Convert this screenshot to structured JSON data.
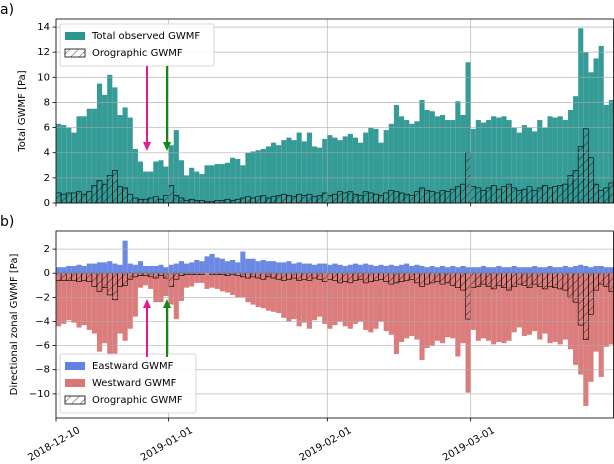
{
  "chart_data": [
    {
      "type": "bar",
      "panel_label": "a)",
      "ylabel": "Total GWMF [Pa]",
      "xlim": [
        "2018-12-10",
        "2019-03-29"
      ],
      "xticks": [
        "2018-12-10",
        "2019-01-01",
        "2019-02-01",
        "2019-03-01"
      ],
      "show_xtick_labels": false,
      "ylim": [
        0,
        14.64
      ],
      "yticks": [
        0,
        2,
        4,
        6,
        8,
        10,
        12,
        14
      ],
      "grid": true,
      "legend": "upper left",
      "x": [
        "2018-12-10",
        "2018-12-11",
        "2018-12-12",
        "2018-12-13",
        "2018-12-14",
        "2018-12-15",
        "2018-12-16",
        "2018-12-17",
        "2018-12-18",
        "2018-12-19",
        "2018-12-20",
        "2018-12-21",
        "2018-12-22",
        "2018-12-23",
        "2018-12-24",
        "2018-12-25",
        "2018-12-26",
        "2018-12-27",
        "2018-12-28",
        "2018-12-29",
        "2018-12-30",
        "2018-12-31",
        "2019-01-01",
        "2019-01-02",
        "2019-01-03",
        "2019-01-04",
        "2019-01-05",
        "2019-01-06",
        "2019-01-07",
        "2019-01-08",
        "2019-01-09",
        "2019-01-10",
        "2019-01-11",
        "2019-01-12",
        "2019-01-13",
        "2019-01-14",
        "2019-01-15",
        "2019-01-16",
        "2019-01-17",
        "2019-01-18",
        "2019-01-19",
        "2019-01-20",
        "2019-01-21",
        "2019-01-22",
        "2019-01-23",
        "2019-01-24",
        "2019-01-25",
        "2019-01-26",
        "2019-01-27",
        "2019-01-28",
        "2019-01-29",
        "2019-01-30",
        "2019-01-31",
        "2019-02-01",
        "2019-02-02",
        "2019-02-03",
        "2019-02-04",
        "2019-02-05",
        "2019-02-06",
        "2019-02-07",
        "2019-02-08",
        "2019-02-09",
        "2019-02-10",
        "2019-02-11",
        "2019-02-12",
        "2019-02-13",
        "2019-02-14",
        "2019-02-15",
        "2019-02-16",
        "2019-02-17",
        "2019-02-18",
        "2019-02-19",
        "2019-02-20",
        "2019-02-21",
        "2019-02-22",
        "2019-02-23",
        "2019-02-24",
        "2019-02-25",
        "2019-02-26",
        "2019-02-27",
        "2019-02-28",
        "2019-03-01",
        "2019-03-02",
        "2019-03-03",
        "2019-03-04",
        "2019-03-05",
        "2019-03-06",
        "2019-03-07",
        "2019-03-08",
        "2019-03-09",
        "2019-03-10",
        "2019-03-11",
        "2019-03-12",
        "2019-03-13",
        "2019-03-14",
        "2019-03-15",
        "2019-03-16",
        "2019-03-17",
        "2019-03-18",
        "2019-03-19",
        "2019-03-20",
        "2019-03-21",
        "2019-03-22",
        "2019-03-23",
        "2019-03-24",
        "2019-03-25",
        "2019-03-26",
        "2019-03-27",
        "2019-03-28"
      ],
      "series": [
        {
          "name": "Total observed GWMF",
          "color": "#2a9690",
          "hatch": false,
          "values": [
            6.3,
            6.2,
            6.0,
            5.6,
            6.9,
            6.9,
            7.5,
            7.5,
            9.5,
            8.6,
            10.2,
            9.2,
            7.0,
            7.6,
            6.8,
            4.3,
            3.3,
            2.5,
            2.5,
            3.3,
            3.4,
            2.9,
            4.6,
            5.8,
            3.4,
            2.2,
            2.8,
            2.5,
            2.3,
            3.0,
            3.0,
            3.1,
            3.1,
            3.2,
            3.6,
            3.5,
            3.0,
            4.0,
            4.1,
            4.2,
            4.3,
            4.5,
            4.8,
            4.6,
            5.0,
            5.2,
            5.0,
            5.6,
            4.9,
            5.6,
            4.5,
            4.4,
            5.1,
            5.4,
            5.2,
            5.0,
            5.3,
            5.5,
            5.2,
            4.8,
            5.6,
            6.0,
            5.9,
            4.8,
            5.8,
            6.3,
            7.8,
            6.9,
            6.6,
            6.3,
            6.5,
            8.2,
            7.4,
            7.3,
            6.9,
            7.0,
            6.6,
            6.6,
            8.1,
            7.0,
            11.2,
            5.9,
            6.6,
            6.4,
            6.6,
            6.9,
            6.8,
            6.9,
            6.6,
            6.0,
            5.6,
            6.2,
            6.0,
            5.7,
            6.6,
            6.0,
            6.9,
            6.8,
            6.9,
            6.6,
            7.4,
            8.5,
            13.9,
            12.0,
            10.4,
            11.5,
            12.5,
            7.8,
            8.2
          ]
        },
        {
          "name": "Orographic GWMF",
          "color": "#2a9690",
          "hatch": true,
          "values": [
            0.8,
            0.7,
            0.8,
            0.8,
            0.9,
            0.7,
            0.9,
            1.4,
            1.8,
            1.5,
            2.2,
            2.6,
            1.3,
            1.2,
            0.7,
            0.4,
            0.3,
            0.3,
            0.4,
            0.5,
            0.3,
            0.6,
            1.4,
            0.6,
            0.4,
            0.2,
            0.3,
            0.2,
            0.2,
            0.1,
            0.1,
            0.2,
            0.2,
            0.3,
            0.2,
            0.3,
            0.4,
            0.5,
            0.4,
            0.5,
            0.6,
            0.4,
            0.5,
            0.6,
            0.7,
            0.6,
            0.5,
            0.7,
            0.6,
            0.7,
            0.5,
            0.6,
            0.8,
            0.6,
            0.7,
            0.9,
            0.8,
            0.9,
            0.7,
            0.6,
            0.9,
            0.8,
            0.7,
            0.6,
            0.8,
            1.0,
            0.9,
            0.8,
            0.7,
            0.6,
            0.9,
            1.2,
            1.0,
            0.9,
            0.8,
            1.0,
            0.9,
            1.1,
            1.3,
            1.5,
            4.0,
            1.3,
            1.2,
            1.0,
            1.2,
            1.4,
            1.1,
            1.3,
            1.5,
            1.2,
            1.0,
            1.1,
            1.3,
            1.0,
            1.2,
            1.4,
            1.2,
            1.3,
            1.4,
            1.5,
            2.2,
            2.6,
            4.5,
            5.9,
            3.6,
            1.5,
            1.0,
            1.2,
            1.6
          ]
        }
      ]
    },
    {
      "type": "bar",
      "panel_label": "b)",
      "ylabel": "Directional zonal GWMF [Pa]",
      "xlim": [
        "2018-12-10",
        "2019-03-29"
      ],
      "xticks": [
        "2018-12-10",
        "2019-01-01",
        "2019-02-01",
        "2019-03-01"
      ],
      "show_xtick_labels": true,
      "ylim": [
        -12,
        3.5
      ],
      "yticks": [
        {
          "value": -10,
          "label": "−10"
        },
        {
          "value": -8,
          "label": "−8"
        },
        {
          "value": -6,
          "label": "−6"
        },
        {
          "value": -4,
          "label": "−4"
        },
        {
          "value": -2,
          "label": "−2"
        },
        0,
        2
      ],
      "grid": true,
      "legend": "lower left",
      "x": [
        "2018-12-10",
        "2018-12-11",
        "2018-12-12",
        "2018-12-13",
        "2018-12-14",
        "2018-12-15",
        "2018-12-16",
        "2018-12-17",
        "2018-12-18",
        "2018-12-19",
        "2018-12-20",
        "2018-12-21",
        "2018-12-22",
        "2018-12-23",
        "2018-12-24",
        "2018-12-25",
        "2018-12-26",
        "2018-12-27",
        "2018-12-28",
        "2018-12-29",
        "2018-12-30",
        "2018-12-31",
        "2019-01-01",
        "2019-01-02",
        "2019-01-03",
        "2019-01-04",
        "2019-01-05",
        "2019-01-06",
        "2019-01-07",
        "2019-01-08",
        "2019-01-09",
        "2019-01-10",
        "2019-01-11",
        "2019-01-12",
        "2019-01-13",
        "2019-01-14",
        "2019-01-15",
        "2019-01-16",
        "2019-01-17",
        "2019-01-18",
        "2019-01-19",
        "2019-01-20",
        "2019-01-21",
        "2019-01-22",
        "2019-01-23",
        "2019-01-24",
        "2019-01-25",
        "2019-01-26",
        "2019-01-27",
        "2019-01-28",
        "2019-01-29",
        "2019-01-30",
        "2019-01-31",
        "2019-02-01",
        "2019-02-02",
        "2019-02-03",
        "2019-02-04",
        "2019-02-05",
        "2019-02-06",
        "2019-02-07",
        "2019-02-08",
        "2019-02-09",
        "2019-02-10",
        "2019-02-11",
        "2019-02-12",
        "2019-02-13",
        "2019-02-14",
        "2019-02-15",
        "2019-02-16",
        "2019-02-17",
        "2019-02-18",
        "2019-02-19",
        "2019-02-20",
        "2019-02-21",
        "2019-02-22",
        "2019-02-23",
        "2019-02-24",
        "2019-02-25",
        "2019-02-26",
        "2019-02-27",
        "2019-02-28",
        "2019-03-01",
        "2019-03-02",
        "2019-03-03",
        "2019-03-04",
        "2019-03-05",
        "2019-03-06",
        "2019-03-07",
        "2019-03-08",
        "2019-03-09",
        "2019-03-10",
        "2019-03-11",
        "2019-03-12",
        "2019-03-13",
        "2019-03-14",
        "2019-03-15",
        "2019-03-16",
        "2019-03-17",
        "2019-03-18",
        "2019-03-19",
        "2019-03-20",
        "2019-03-21",
        "2019-03-22",
        "2019-03-23",
        "2019-03-24",
        "2019-03-25",
        "2019-03-26",
        "2019-03-27",
        "2019-03-28"
      ],
      "series": [
        {
          "name": "Eastward GWMF",
          "color": "#6383e2",
          "hatch": false,
          "values": [
            0.5,
            0.5,
            0.6,
            0.6,
            0.7,
            0.6,
            0.8,
            0.8,
            0.9,
            0.9,
            1.0,
            0.8,
            0.7,
            2.7,
            0.8,
            0.7,
            1.0,
            0.6,
            0.6,
            0.6,
            0.7,
            0.5,
            0.7,
            0.8,
            1.0,
            0.8,
            0.9,
            1.1,
            1.0,
            1.4,
            1.6,
            1.3,
            1.2,
            1.0,
            1.1,
            0.9,
            1.8,
            1.2,
            1.2,
            1.0,
            1.1,
            1.0,
            1.0,
            0.9,
            0.9,
            1.0,
            0.8,
            0.9,
            0.8,
            0.8,
            0.7,
            0.8,
            0.8,
            0.7,
            0.8,
            0.7,
            0.6,
            0.7,
            0.8,
            0.7,
            0.8,
            0.7,
            0.6,
            0.7,
            0.6,
            0.7,
            0.6,
            0.7,
            0.8,
            0.6,
            0.7,
            0.6,
            0.5,
            0.6,
            0.5,
            0.6,
            0.5,
            0.6,
            0.5,
            0.6,
            0.5,
            0.5,
            0.5,
            0.6,
            0.5,
            0.5,
            0.6,
            0.5,
            0.5,
            0.6,
            0.5,
            0.5,
            0.5,
            0.6,
            0.5,
            0.5,
            0.6,
            0.5,
            0.5,
            0.6,
            0.5,
            0.6,
            0.7,
            0.6,
            0.5,
            0.6,
            0.6,
            0.5,
            0.5
          ]
        },
        {
          "name": "Westward GWMF",
          "color": "#da7676",
          "hatch": false,
          "values": [
            -4.4,
            -4.2,
            -3.9,
            -4.1,
            -4.5,
            -4.3,
            -4.7,
            -5.0,
            -6.5,
            -5.8,
            -6.8,
            -6.7,
            -5.0,
            -5.6,
            -4.6,
            -3.6,
            -1.2,
            -1.0,
            -1.3,
            -2.4,
            -2.4,
            -1.9,
            -2.6,
            -3.8,
            -2.3,
            -1.2,
            -1.1,
            -0.8,
            -0.8,
            -1.3,
            -1.2,
            -1.3,
            -1.5,
            -1.6,
            -1.8,
            -2.0,
            -2.0,
            -2.4,
            -2.6,
            -2.8,
            -2.9,
            -3.1,
            -3.2,
            -3.3,
            -3.7,
            -4.0,
            -3.8,
            -4.4,
            -4.1,
            -4.6,
            -3.9,
            -3.6,
            -4.2,
            -4.6,
            -4.3,
            -4.0,
            -4.4,
            -4.6,
            -4.2,
            -4.0,
            -4.7,
            -4.9,
            -4.6,
            -4.0,
            -4.8,
            -5.1,
            -6.7,
            -5.7,
            -5.4,
            -5.2,
            -5.5,
            -7.2,
            -6.2,
            -6.0,
            -5.6,
            -5.8,
            -5.3,
            -5.4,
            -6.9,
            -5.8,
            -9.9,
            -4.7,
            -5.6,
            -5.4,
            -5.6,
            -5.9,
            -5.7,
            -5.8,
            -5.6,
            -4.9,
            -4.5,
            -5.2,
            -5.1,
            -4.8,
            -5.5,
            -5.0,
            -5.8,
            -5.7,
            -5.9,
            -5.5,
            -6.3,
            -7.6,
            -8.4,
            -11.0,
            -9.0,
            -6.5,
            -8.6,
            -6.1,
            -5.9
          ]
        },
        {
          "name": "Orographic GWMF",
          "color": "#da7676",
          "hatch": true,
          "values": [
            -0.6,
            -0.6,
            -0.6,
            -0.6,
            -0.7,
            -0.6,
            -0.7,
            -1.1,
            -1.5,
            -1.2,
            -1.8,
            -2.2,
            -1.1,
            -1.0,
            -0.5,
            -0.3,
            -0.2,
            -0.2,
            -0.3,
            -0.4,
            -0.2,
            -0.4,
            -1.1,
            -0.5,
            -0.2,
            -0.1,
            -0.1,
            -0.1,
            -0.1,
            0,
            -0.1,
            -0.1,
            -0.1,
            -0.2,
            -0.1,
            -0.2,
            -0.3,
            -0.4,
            -0.3,
            -0.4,
            -0.5,
            -0.3,
            -0.4,
            -0.5,
            -0.6,
            -0.5,
            -0.4,
            -0.6,
            -0.5,
            -0.6,
            -0.4,
            -0.5,
            -0.7,
            -0.5,
            -0.6,
            -0.8,
            -0.7,
            -0.8,
            -0.6,
            -0.5,
            -0.8,
            -0.7,
            -0.6,
            -0.5,
            -0.7,
            -0.9,
            -0.8,
            -0.7,
            -0.6,
            -0.5,
            -0.8,
            -1.1,
            -0.9,
            -0.8,
            -0.7,
            -0.9,
            -0.8,
            -1.0,
            -1.2,
            -1.4,
            -3.8,
            -1.2,
            -1.1,
            -0.9,
            -1.1,
            -1.3,
            -1.0,
            -1.2,
            -1.4,
            -1.1,
            -0.9,
            -1.0,
            -1.2,
            -0.9,
            -1.1,
            -1.3,
            -1.1,
            -1.2,
            -1.3,
            -1.4,
            -2.0,
            -2.4,
            -4.3,
            -5.5,
            -3.4,
            -1.4,
            -0.9,
            -1.1,
            -1.5
          ]
        }
      ]
    }
  ]
}
